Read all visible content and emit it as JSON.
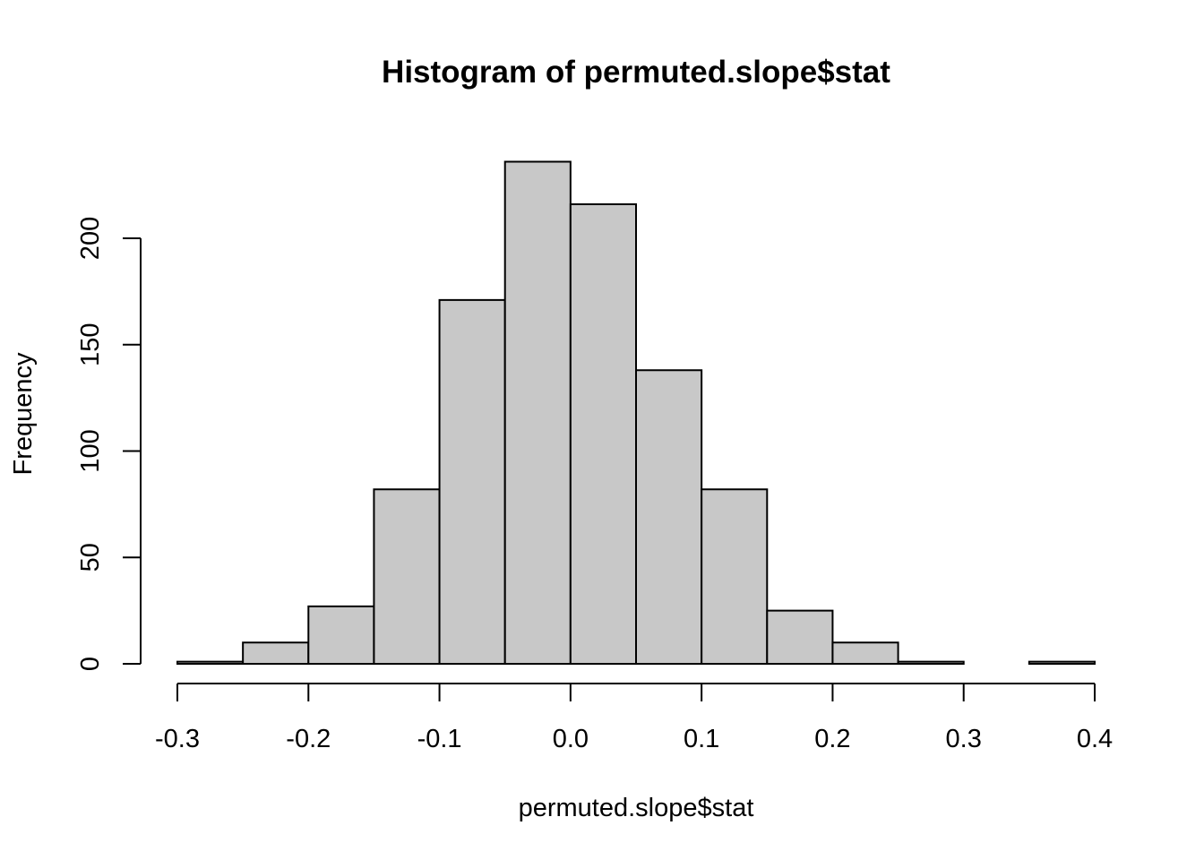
{
  "chart_data": {
    "type": "bar",
    "histogram": true,
    "title": "Histogram of permuted.slope$stat",
    "xlabel": "permuted.slope$stat",
    "ylabel": "Frequency",
    "bin_edges": [
      -0.3,
      -0.25,
      -0.2,
      -0.15,
      -0.1,
      -0.05,
      0.0,
      0.05,
      0.1,
      0.15,
      0.2,
      0.25,
      0.3,
      0.35,
      0.4
    ],
    "values": [
      1,
      10,
      27,
      82,
      171,
      236,
      216,
      138,
      82,
      25,
      10,
      1,
      0,
      1
    ],
    "xlim": [
      -0.3,
      0.4
    ],
    "ylim": [
      0,
      236
    ],
    "x_ticks": [
      -0.3,
      -0.2,
      -0.1,
      0.0,
      0.1,
      0.2,
      0.3,
      0.4
    ],
    "x_tick_labels": [
      "-0.3",
      "-0.2",
      "-0.1",
      "0.0",
      "0.1",
      "0.2",
      "0.3",
      "0.4"
    ],
    "y_ticks": [
      0,
      50,
      100,
      150,
      200
    ],
    "y_tick_labels": [
      "0",
      "50",
      "100",
      "150",
      "200"
    ],
    "bar_color": "#c8c8c8",
    "border_color": "#000000",
    "grid": false,
    "legend": "none"
  }
}
